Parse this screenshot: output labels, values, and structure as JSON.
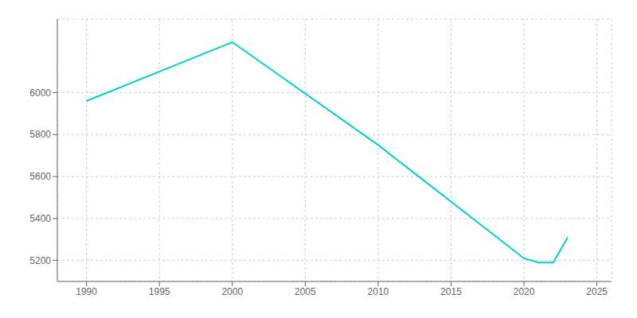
{
  "chart_data": {
    "type": "line",
    "x": [
      1990,
      2000,
      2010,
      2020,
      2021,
      2022,
      2023
    ],
    "values": [
      5960,
      6240,
      5750,
      5210,
      5190,
      5190,
      5310
    ],
    "color": "#00CED1",
    "xlim": [
      1988,
      2026
    ],
    "ylim": [
      5100,
      6350
    ],
    "xticks": [
      1990,
      1995,
      2000,
      2005,
      2010,
      2015,
      2020,
      2025
    ],
    "yticks": [
      5200,
      5400,
      5600,
      5800,
      6000
    ],
    "grid": true
  }
}
